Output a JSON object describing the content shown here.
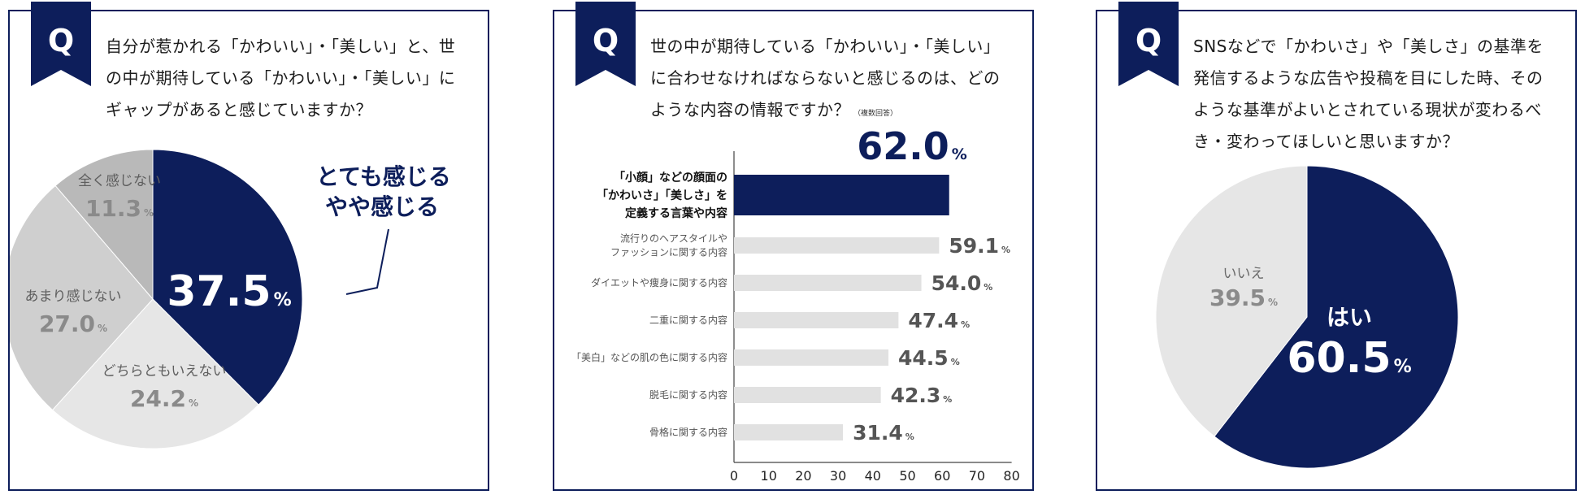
{
  "colors": {
    "navy": "#0d1e5b",
    "dark_gray": "#b9b9b9",
    "mid_gray": "#cfcfcf",
    "light_gray": "#e6e6e6",
    "text_gray": "#6a6a6a"
  },
  "badge_letter": "Q",
  "panel1": {
    "question": "自分が惹かれる「かわいい」・「美しい」と、世の中が期待している「かわいい」・「美しい」にギャップがあると感じていますか？",
    "callout_line1": "とても感じる",
    "callout_line2": "やや感じる"
  },
  "panel2": {
    "question": "世の中が期待している「かわいい」・「美しい」に合わせなければならないと感じるのは、どのような内容の情報ですか？",
    "note": "（複数回答）"
  },
  "panel3": {
    "question": "SNSなどで「かわいさ」や「美しさ」の基準を発信するような広告や投稿を目にした時、そのような基準がよいとされている現状が変わるべき・変わってほしいと思いますか？"
  },
  "chart_data": [
    {
      "type": "pie",
      "labels": [
        "とても感じる やや感じる",
        "どちらともいえない",
        "あまり感じない",
        "全く感じない"
      ],
      "values": [
        37.5,
        24.2,
        27.0,
        11.3
      ],
      "display": [
        "37.5",
        "24.2",
        "27.0",
        "11.3"
      ],
      "unit": "%",
      "colors": [
        "#0d1e5b",
        "#e6e6e6",
        "#cfcfcf",
        "#b9b9b9"
      ]
    },
    {
      "type": "bar",
      "orientation": "horizontal",
      "categories": [
        "「小顔」などの顔面の「かわいさ」「美しさ」を定義する言葉や内容",
        "流行りのヘアスタイルやファッションに関する内容",
        "ダイエットや痩身に関する内容",
        "二重に関する内容",
        "「美白」などの肌の色に関する内容",
        "脱毛に関する内容",
        "骨格に関する内容"
      ],
      "category_lines": [
        [
          "「小顔」などの顔面の",
          "「かわいさ」「美しさ」を",
          "定義する言葉や内容"
        ],
        [
          "流行りのヘアスタイルや",
          "ファッションに関する内容"
        ],
        [
          "ダイエットや痩身に関する内容"
        ],
        [
          "二重に関する内容"
        ],
        [
          "「美白」などの肌の色に関する内容"
        ],
        [
          "脱毛に関する内容"
        ],
        [
          "骨格に関する内容"
        ]
      ],
      "values": [
        62.0,
        59.1,
        54.0,
        47.4,
        44.5,
        42.3,
        31.4
      ],
      "display": [
        "62.0",
        "59.1",
        "54.0",
        "47.4",
        "44.5",
        "42.3",
        "31.4"
      ],
      "unit": "%",
      "xlim": [
        0,
        80
      ],
      "xticks": [
        "0",
        "10",
        "20",
        "30",
        "40",
        "50",
        "60",
        "70",
        "80"
      ]
    },
    {
      "type": "pie",
      "labels": [
        "はい",
        "いいえ"
      ],
      "values": [
        60.5,
        39.5
      ],
      "display": [
        "60.5",
        "39.5"
      ],
      "unit": "%",
      "colors": [
        "#0d1e5b",
        "#e6e6e6"
      ]
    }
  ]
}
